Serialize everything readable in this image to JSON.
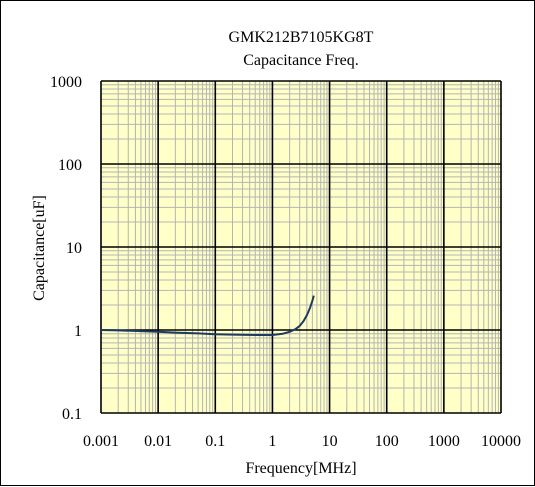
{
  "chart_data": {
    "type": "line",
    "title": "GMK212B7105KG8T",
    "subtitle": "Capacitance Freq.",
    "xlabel": "Frequency[MHz]",
    "ylabel": "Capacitance[uF]",
    "x_scale": "log",
    "y_scale": "log",
    "xlim": [
      0.001,
      10000
    ],
    "ylim": [
      0.1,
      1000
    ],
    "x_ticks": [
      "0.001",
      "0.01",
      "0.1",
      "1",
      "10",
      "100",
      "1000",
      "10000"
    ],
    "y_ticks": [
      "0.1",
      "1",
      "10",
      "100",
      "1000"
    ],
    "grid": true,
    "colors": {
      "plot_background": "#ffffc8",
      "minor_grid": "#b4b4b4",
      "major_grid": "#000000",
      "line": "#1f3a5f"
    },
    "series": [
      {
        "x": [
          0.001,
          0.002,
          0.005,
          0.01,
          0.02,
          0.05,
          0.1,
          0.2,
          0.5,
          1.0,
          1.5,
          2.0,
          2.5,
          3.0,
          3.5,
          4.0,
          4.5,
          5.0,
          5.3
        ],
        "y": [
          1.0,
          0.99,
          0.97,
          0.95,
          0.93,
          0.91,
          0.89,
          0.88,
          0.87,
          0.87,
          0.9,
          0.95,
          1.02,
          1.12,
          1.28,
          1.5,
          1.82,
          2.25,
          2.6
        ]
      }
    ]
  }
}
